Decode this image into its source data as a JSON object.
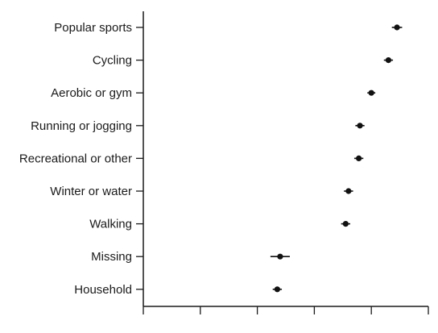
{
  "chart_data": {
    "type": "forest",
    "title": "",
    "xlabel": "",
    "ylabel": "",
    "x_tick_labels": [],
    "xlim": [
      0,
      5
    ],
    "x_ticks": [
      0,
      1,
      2,
      3,
      4,
      5
    ],
    "grid": false,
    "legend": "none",
    "categories": [
      "Popular sports",
      "Cycling",
      "Aerobic or gym",
      "Running or jogging",
      "Recreational or other",
      "Winter or water",
      "Walking",
      "Missing",
      "Household"
    ],
    "series": [
      {
        "estimate": [
          4.45,
          4.3,
          4.0,
          3.8,
          3.78,
          3.6,
          3.55,
          2.4,
          2.35
        ],
        "lower": [
          4.36,
          4.22,
          3.93,
          3.72,
          3.7,
          3.52,
          3.47,
          2.23,
          2.27
        ],
        "upper": [
          4.54,
          4.38,
          4.07,
          3.88,
          3.86,
          3.68,
          3.63,
          2.57,
          2.43
        ]
      }
    ]
  }
}
